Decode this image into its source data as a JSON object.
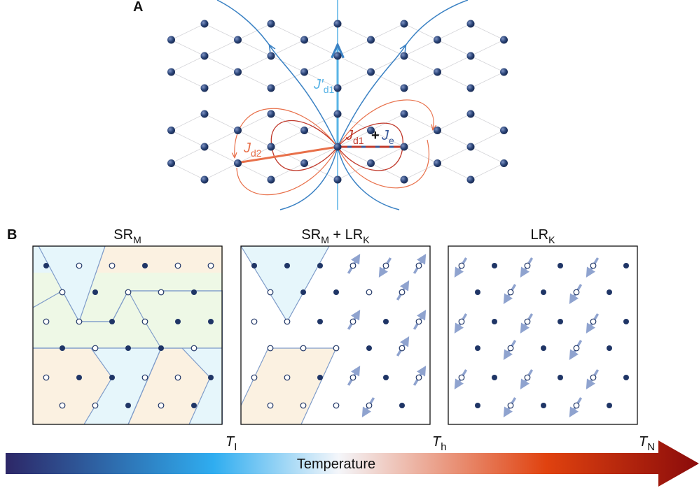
{
  "panel_labels": [
    "A",
    "B"
  ],
  "couplings": {
    "jd1_prime": {
      "main": "J′",
      "sub": "d1"
    },
    "jd1": {
      "main": "J",
      "sub": "d1"
    },
    "plus": "+",
    "je": {
      "main": "J",
      "sub": "e"
    },
    "jd2": {
      "main": "J",
      "sub": "d2"
    }
  },
  "phases": [
    {
      "title": [
        {
          "text": "SR"
        },
        {
          "sub": "M"
        }
      ]
    },
    {
      "title": [
        {
          "text": "SR"
        },
        {
          "sub": "M"
        },
        {
          "text": " + LR"
        },
        {
          "sub": "K"
        }
      ]
    },
    {
      "title": [
        {
          "text": "LR"
        },
        {
          "sub": "K"
        }
      ]
    }
  ],
  "temperatures": [
    {
      "main": "T",
      "sub": "I"
    },
    {
      "main": "T",
      "sub": "h"
    },
    {
      "main": "T",
      "sub": "N"
    }
  ],
  "axis_label": "Temperature"
}
